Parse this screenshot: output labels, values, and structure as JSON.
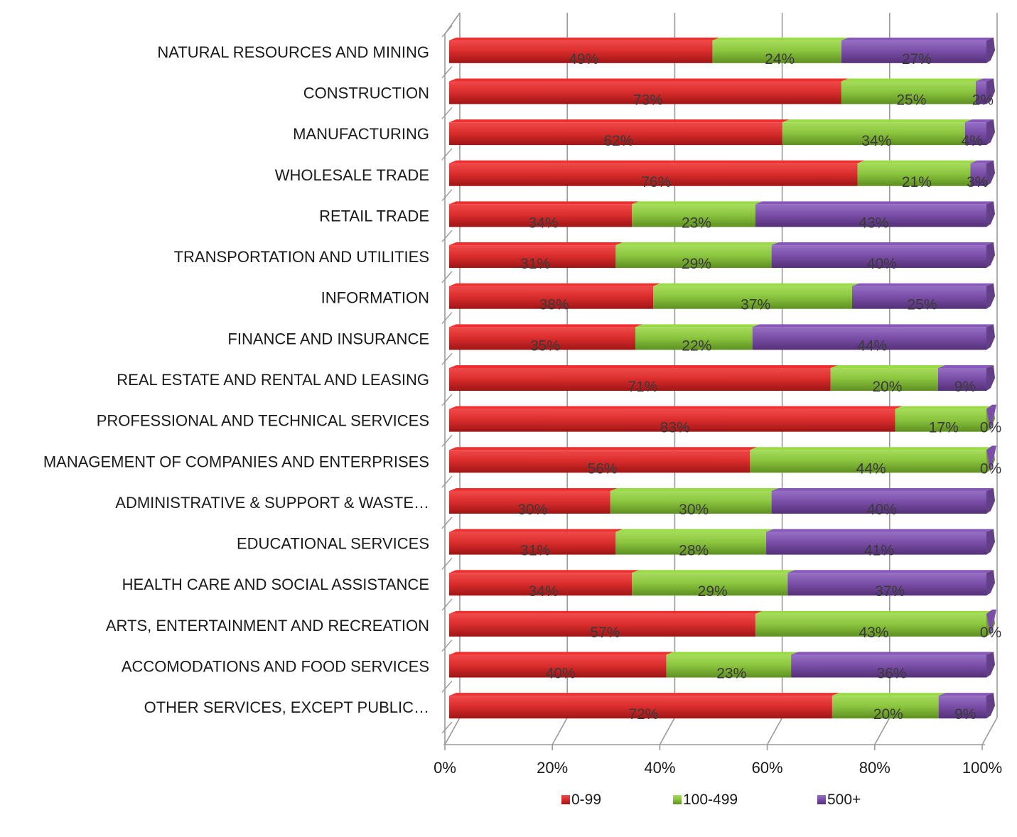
{
  "chart_data": {
    "type": "bar",
    "orientation": "horizontal",
    "stacked": "percent",
    "categories": [
      "NATURAL RESOURCES AND MINING",
      "CONSTRUCTION",
      "MANUFACTURING",
      "WHOLESALE TRADE",
      "RETAIL TRADE",
      "TRANSPORTATION AND UTILITIES",
      "INFORMATION",
      "FINANCE AND INSURANCE",
      "REAL ESTATE AND RENTAL AND LEASING",
      "PROFESSIONAL AND TECHNICAL SERVICES",
      "MANAGEMENT OF COMPANIES AND ENTERPRISES",
      "ADMINISTRATIVE & SUPPORT & WASTE…",
      "EDUCATIONAL SERVICES",
      "HEALTH CARE AND SOCIAL ASSISTANCE",
      "ARTS, ENTERTAINMENT AND RECREATION",
      "ACCOMODATIONS AND FOOD SERVICES",
      "OTHER SERVICES, EXCEPT PUBLIC…"
    ],
    "series": [
      {
        "name": "0-99",
        "color": "#d92b2b",
        "values": [
          49,
          73,
          62,
          76,
          34,
          31,
          38,
          35,
          71,
          83,
          56,
          30,
          31,
          34,
          57,
          40,
          72
        ],
        "labels": [
          "49%",
          "73%",
          "62%",
          "76%",
          "34%",
          "31%",
          "38%",
          "35%",
          "71%",
          "83%",
          "56%",
          "30%",
          "31%",
          "34%",
          "57%",
          "40%",
          "72%"
        ]
      },
      {
        "name": "100-499",
        "color": "#8cc63f",
        "values": [
          24,
          25,
          34,
          21,
          23,
          29,
          37,
          22,
          20,
          17,
          44,
          30,
          28,
          29,
          43,
          23,
          20
        ],
        "labels": [
          "24%",
          "25%",
          "34%",
          "21%",
          "23%",
          "29%",
          "37%",
          "22%",
          "20%",
          "17%",
          "44%",
          "30%",
          "28%",
          "29%",
          "43%",
          "23%",
          "20%"
        ]
      },
      {
        "name": "500+",
        "color": "#7b4fa8",
        "values": [
          27,
          2,
          4,
          3,
          43,
          40,
          25,
          44,
          9,
          0,
          0,
          40,
          41,
          37,
          0,
          36,
          9
        ],
        "labels": [
          "27%",
          "2%",
          "4%",
          "3%",
          "43%",
          "40%",
          "25%",
          "44%",
          "9%",
          "0%",
          "0%",
          "40%",
          "41%",
          "37%",
          "0%",
          "36%",
          "9%"
        ]
      }
    ],
    "x_ticks": [
      "0%",
      "20%",
      "40%",
      "60%",
      "80%",
      "100%"
    ],
    "xlim": [
      0,
      100
    ],
    "grid": true,
    "legend_position": "bottom",
    "title": "",
    "xlabel": "",
    "ylabel": ""
  }
}
